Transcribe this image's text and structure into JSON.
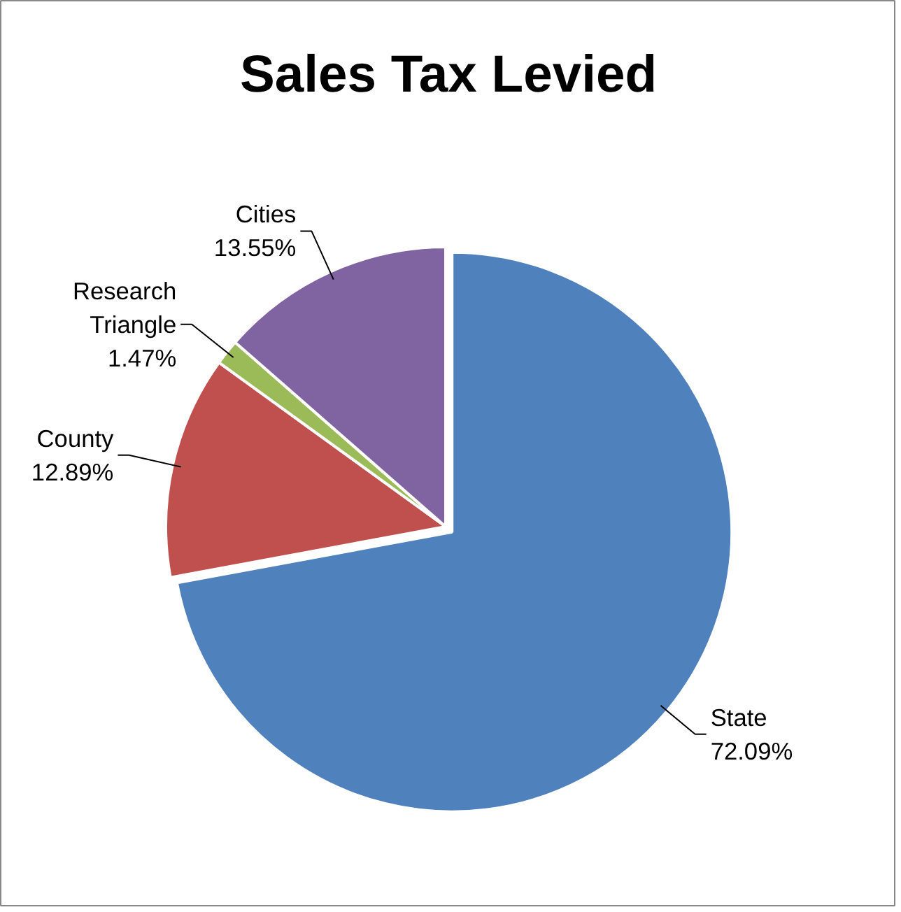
{
  "chart_data": {
    "type": "pie",
    "title": "Sales Tax Levied",
    "categories": [
      "State",
      "County",
      "Research Triangle",
      "Cities"
    ],
    "values": [
      72.09,
      12.89,
      1.47,
      13.55
    ],
    "colors": [
      "#4f81bd",
      "#c0504d",
      "#9bbb59",
      "#8064a2"
    ],
    "value_labels": [
      "72.09%",
      "12.89%",
      "1.47%",
      "13.55%"
    ]
  }
}
